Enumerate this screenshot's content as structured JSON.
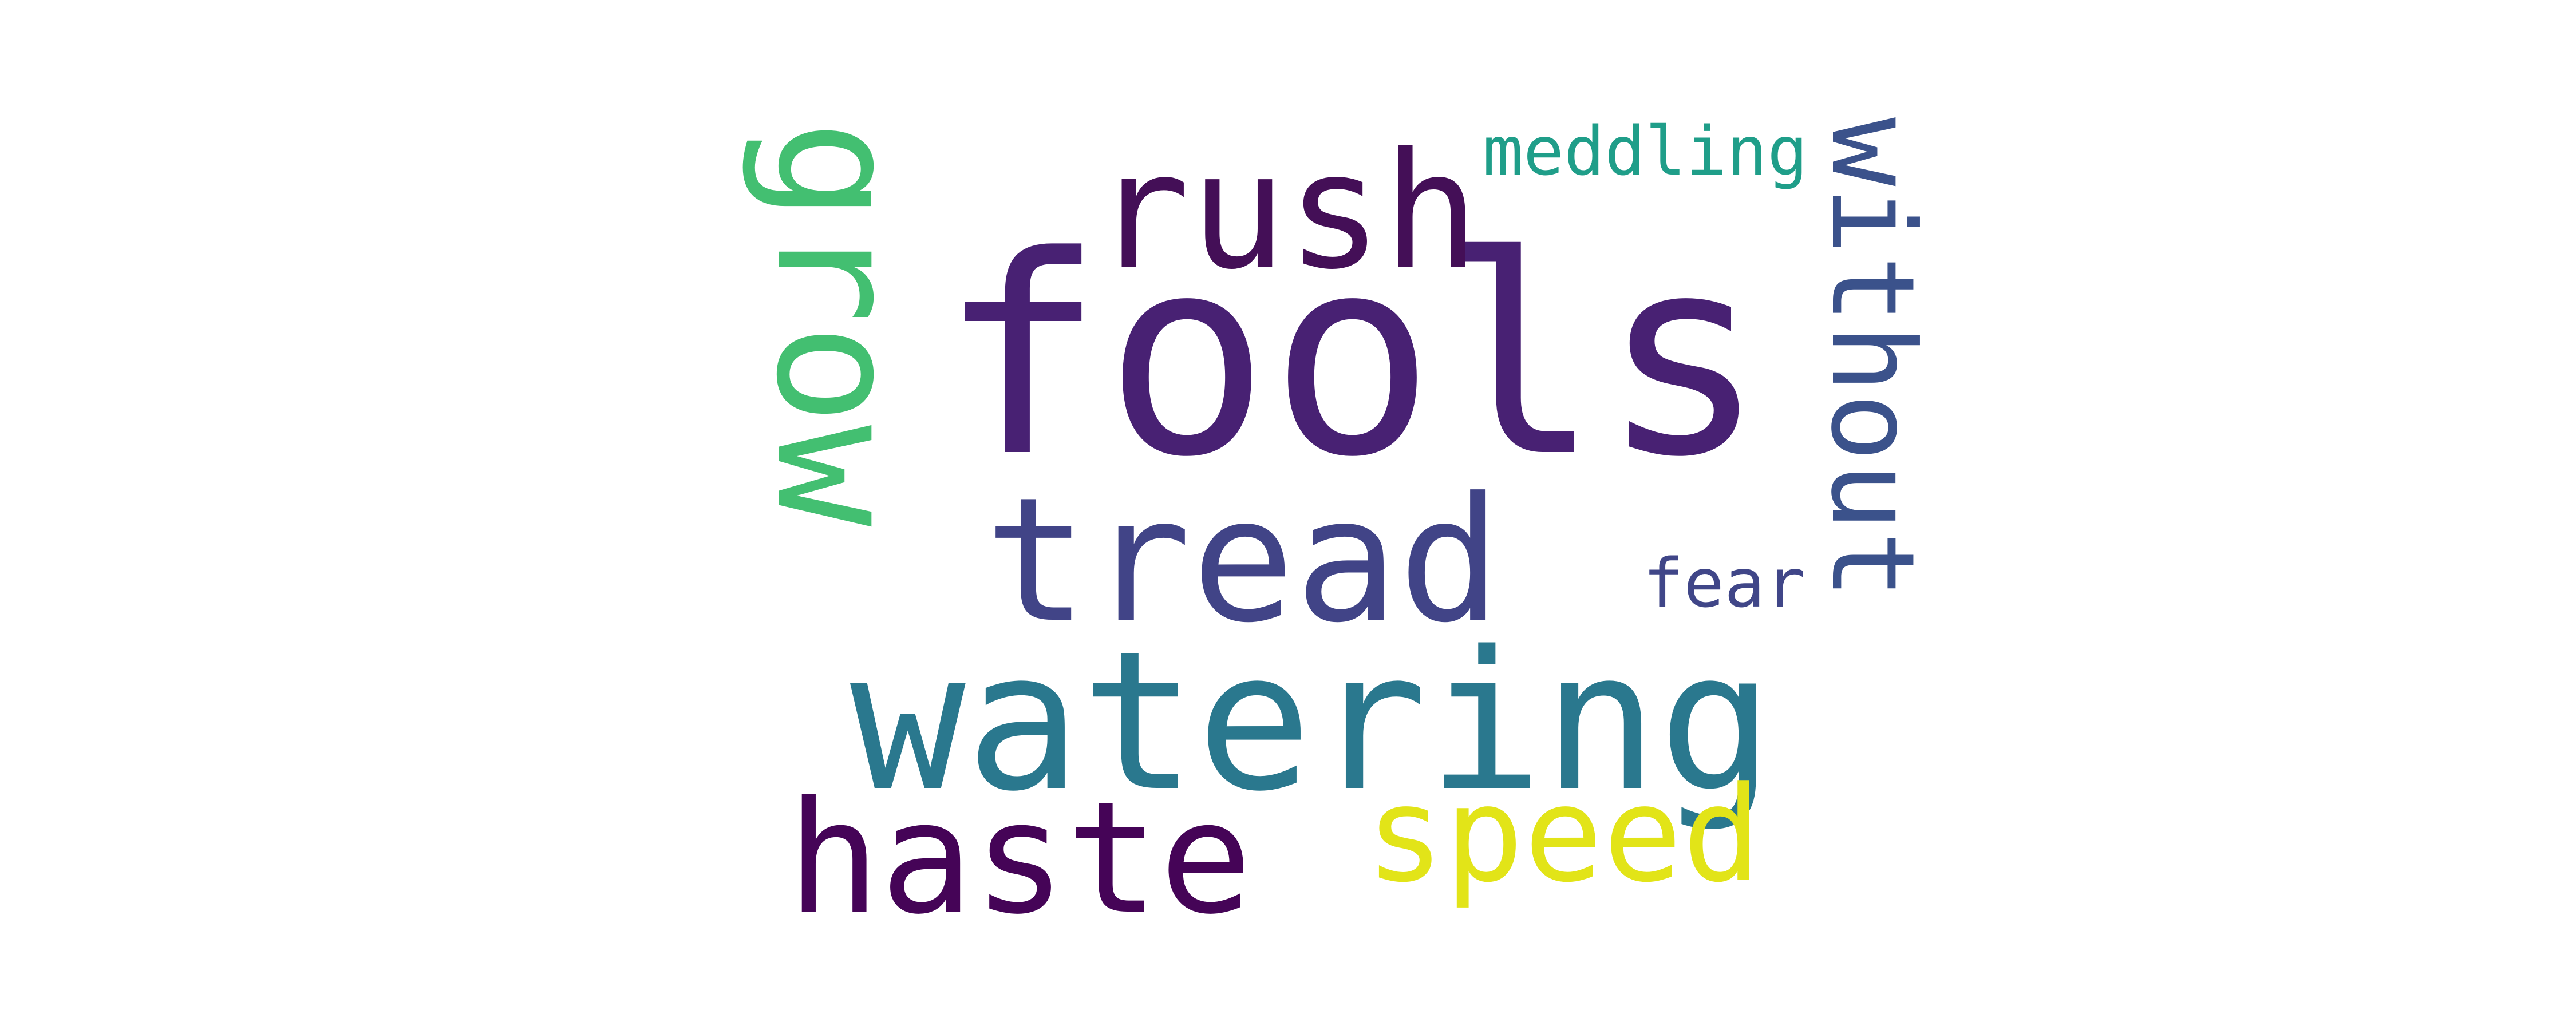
{
  "words": [
    {
      "text": "fools",
      "color": "#482173"
    },
    {
      "text": "watering",
      "color": "#2a788e"
    },
    {
      "text": "tread",
      "color": "#414487"
    },
    {
      "text": "rush",
      "color": "#440f57"
    },
    {
      "text": "haste",
      "color": "#450457"
    },
    {
      "text": "speed",
      "color": "#e2e418"
    },
    {
      "text": "grow",
      "color": "#43bf71"
    },
    {
      "text": "without",
      "color": "#3b528b"
    },
    {
      "text": "meddling",
      "color": "#1f9e89"
    },
    {
      "text": "fear",
      "color": "#404688"
    }
  ]
}
